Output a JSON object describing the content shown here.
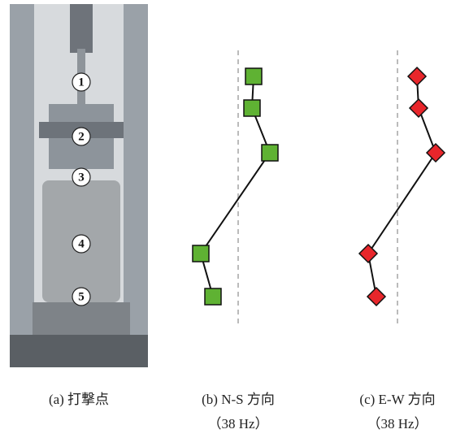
{
  "photo": {
    "labels": [
      "1",
      "2",
      "3",
      "4",
      "5"
    ]
  },
  "plots": [
    {
      "marker": "square",
      "color": "#5fb233",
      "values": [
        19,
        17,
        39,
        -46,
        -31
      ]
    },
    {
      "marker": "diamond",
      "color": "#e8262b",
      "values": [
        24,
        26,
        47,
        -36,
        -26
      ]
    }
  ],
  "captions": [
    {
      "lines": [
        "(a)  打撃点"
      ]
    },
    {
      "lines": [
        "(b) N-S 方向",
        "（38 Hz）"
      ]
    },
    {
      "lines": [
        "(c) E-W 方向",
        "（38 Hz）"
      ]
    }
  ]
}
